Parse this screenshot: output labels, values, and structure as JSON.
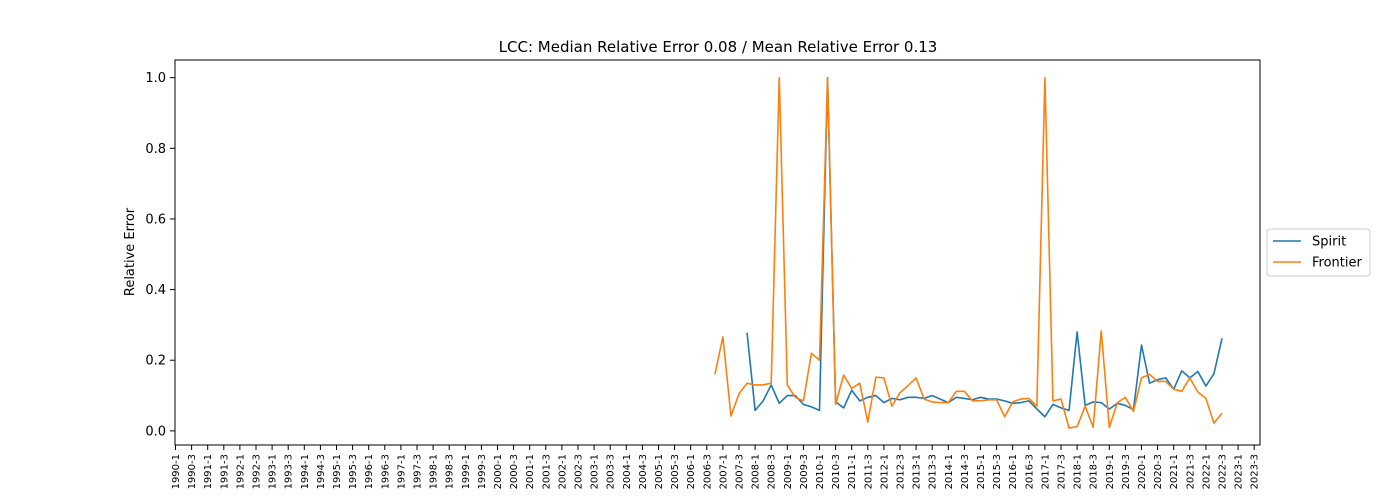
{
  "chart_data": {
    "type": "line",
    "title": "LCC: Median Relative Error 0.08 / Mean Relative Error 0.13",
    "xlabel": "",
    "ylabel": "Relative Error",
    "ylim": [
      -0.04,
      1.05
    ],
    "yticks": [
      0.0,
      0.2,
      0.4,
      0.6,
      0.8,
      1.0
    ],
    "ytick_labels": [
      "0.0",
      "0.2",
      "0.4",
      "0.6",
      "0.8",
      "1.0"
    ],
    "grid": false,
    "legend_position": "right",
    "x_categories": [
      "1990-1",
      "1990-2",
      "1990-3",
      "1990-4",
      "1991-1",
      "1991-2",
      "1991-3",
      "1991-4",
      "1992-1",
      "1992-2",
      "1992-3",
      "1992-4",
      "1993-1",
      "1993-2",
      "1993-3",
      "1993-4",
      "1994-1",
      "1994-2",
      "1994-3",
      "1994-4",
      "1995-1",
      "1995-2",
      "1995-3",
      "1995-4",
      "1996-1",
      "1996-2",
      "1996-3",
      "1996-4",
      "1997-1",
      "1997-2",
      "1997-3",
      "1997-4",
      "1998-1",
      "1998-2",
      "1998-3",
      "1998-4",
      "1999-1",
      "1999-2",
      "1999-3",
      "1999-4",
      "2000-1",
      "2000-2",
      "2000-3",
      "2000-4",
      "2001-1",
      "2001-2",
      "2001-3",
      "2001-4",
      "2002-1",
      "2002-2",
      "2002-3",
      "2002-4",
      "2003-1",
      "2003-2",
      "2003-3",
      "2003-4",
      "2004-1",
      "2004-2",
      "2004-3",
      "2004-4",
      "2005-1",
      "2005-2",
      "2005-3",
      "2005-4",
      "2006-1",
      "2006-2",
      "2006-3",
      "2006-4",
      "2007-1",
      "2007-2",
      "2007-3",
      "2007-4",
      "2008-1",
      "2008-2",
      "2008-3",
      "2008-4",
      "2009-1",
      "2009-2",
      "2009-3",
      "2009-4",
      "2010-1",
      "2010-2",
      "2010-3",
      "2010-4",
      "2011-1",
      "2011-2",
      "2011-3",
      "2011-4",
      "2012-1",
      "2012-2",
      "2012-3",
      "2012-4",
      "2013-1",
      "2013-2",
      "2013-3",
      "2013-4",
      "2014-1",
      "2014-2",
      "2014-3",
      "2014-4",
      "2015-1",
      "2015-2",
      "2015-3",
      "2015-4",
      "2016-1",
      "2016-2",
      "2016-3",
      "2016-4",
      "2017-1",
      "2017-2",
      "2017-3",
      "2017-4",
      "2018-1",
      "2018-2",
      "2018-3",
      "2018-4",
      "2019-1",
      "2019-2",
      "2019-3",
      "2019-4",
      "2020-1",
      "2020-2",
      "2020-3",
      "2020-4",
      "2021-1",
      "2021-2",
      "2021-3",
      "2021-4",
      "2022-1",
      "2022-2",
      "2022-3",
      "2022-4",
      "2023-1",
      "2023-2",
      "2023-3"
    ],
    "x_tick_labels": [
      "1990-1",
      "1990-3",
      "1991-1",
      "1991-3",
      "1992-1",
      "1992-3",
      "1993-1",
      "1993-3",
      "1994-1",
      "1994-3",
      "1995-1",
      "1995-3",
      "1996-1",
      "1996-3",
      "1997-1",
      "1997-3",
      "1998-1",
      "1998-3",
      "1999-1",
      "1999-3",
      "2000-1",
      "2000-3",
      "2001-1",
      "2001-3",
      "2002-1",
      "2002-3",
      "2003-1",
      "2003-3",
      "2004-1",
      "2004-3",
      "2005-1",
      "2005-3",
      "2006-1",
      "2006-3",
      "2007-1",
      "2007-3",
      "2008-1",
      "2008-3",
      "2009-1",
      "2009-3",
      "2010-1",
      "2010-3",
      "2011-1",
      "2011-3",
      "2012-1",
      "2012-3",
      "2013-1",
      "2013-3",
      "2014-1",
      "2014-3",
      "2015-1",
      "2015-3",
      "2016-1",
      "2016-3",
      "2017-1",
      "2017-3",
      "2018-1",
      "2018-3",
      "2019-1",
      "2019-3",
      "2020-1",
      "2020-3",
      "2021-1",
      "2021-3",
      "2022-1",
      "2022-3",
      "2023-1",
      "2023-3"
    ],
    "series": [
      {
        "name": "Spirit",
        "color": "#1f77b4",
        "start": "2007-4",
        "values": [
          0.278,
          0.058,
          0.085,
          0.13,
          0.078,
          0.1,
          0.1,
          0.075,
          0.068,
          0.058,
          1.0,
          0.082,
          0.065,
          0.115,
          0.085,
          0.095,
          0.1,
          0.08,
          0.092,
          0.088,
          0.095,
          0.095,
          0.092,
          0.1,
          0.09,
          0.08,
          0.095,
          0.092,
          0.088,
          0.095,
          0.09,
          0.09,
          0.085,
          0.078,
          0.08,
          0.085,
          0.062,
          0.04,
          0.075,
          0.065,
          0.058,
          0.28,
          0.072,
          0.082,
          0.08,
          0.062,
          0.078,
          0.072,
          0.06,
          0.243,
          0.135,
          0.145,
          0.15,
          0.118,
          0.17,
          0.15,
          0.168,
          0.127,
          0.162,
          0.262
        ]
      },
      {
        "name": "Frontier",
        "color": "#ff7f0e",
        "start": "2006-4",
        "values": [
          0.16,
          0.266,
          0.042,
          0.105,
          0.135,
          0.13,
          0.13,
          0.135,
          1.0,
          0.13,
          0.095,
          0.085,
          0.22,
          0.2,
          1.0,
          0.075,
          0.158,
          0.12,
          0.135,
          0.025,
          0.152,
          0.15,
          0.07,
          0.108,
          0.128,
          0.15,
          0.09,
          0.082,
          0.08,
          0.08,
          0.112,
          0.112,
          0.085,
          0.085,
          0.088,
          0.088,
          0.04,
          0.082,
          0.09,
          0.092,
          0.07,
          1.0,
          0.085,
          0.09,
          0.008,
          0.012,
          0.07,
          0.01,
          0.283,
          0.01,
          0.08,
          0.095,
          0.055,
          0.15,
          0.16,
          0.14,
          0.14,
          0.118,
          0.112,
          0.15,
          0.11,
          0.092,
          0.022,
          0.05
        ]
      }
    ]
  }
}
